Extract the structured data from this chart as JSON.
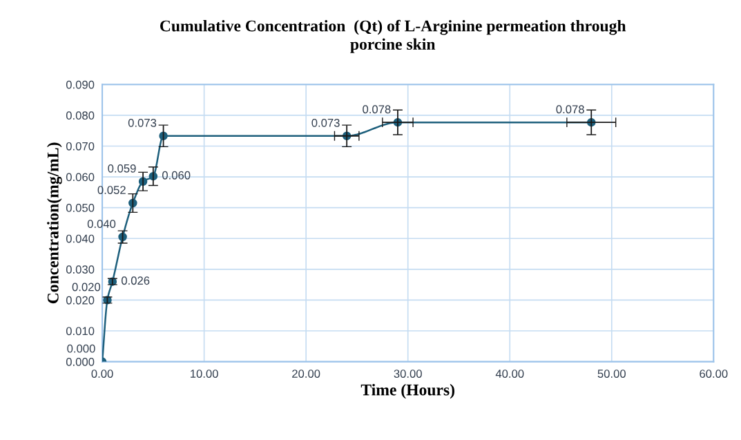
{
  "chart_data": {
    "type": "line",
    "title": "Cumulative Concentration  (Qt) of L-Arginine permeation through porcine skin",
    "xlabel": "Time (Hours)",
    "ylabel": "Concentration(mg/mL)",
    "x": [
      0,
      0.5,
      1,
      2,
      3,
      4,
      5,
      6,
      24,
      29,
      48
    ],
    "series": [
      {
        "color": "#1d5f7c",
        "values": [
          0.0,
          0.02,
          0.026,
          0.0405,
          0.0515,
          0.0585,
          0.0602,
          0.0733,
          0.0733,
          0.0777,
          0.0777
        ],
        "value_labels": [
          "0.000",
          "0.020",
          "0.026",
          "0.040",
          "0.052",
          "0.059",
          "0.060",
          "0.073",
          "0.073",
          "0.078",
          "0.078"
        ],
        "errors": [
          null,
          0.001,
          0.001,
          0.002,
          0.003,
          0.003,
          0.003,
          0.0035,
          0.0035,
          0.004,
          0.004
        ],
        "xerrors": [
          null,
          null,
          null,
          null,
          null,
          null,
          null,
          null,
          1.2,
          1.5,
          2.4
        ]
      }
    ],
    "xlim": [
      0,
      60
    ],
    "xticks": [
      {
        "value": 0,
        "label": "0.00"
      },
      {
        "value": 10,
        "label": "10.00"
      },
      {
        "value": 20,
        "label": "20.00"
      },
      {
        "value": 30,
        "label": "30.00"
      },
      {
        "value": 40,
        "label": "40.00"
      },
      {
        "value": 50,
        "label": "50.00"
      },
      {
        "value": 60,
        "label": "60.00"
      }
    ],
    "ylim": [
      0,
      0.09
    ],
    "yticks": [
      {
        "value": 0,
        "label": "0.000"
      },
      {
        "value": 0.01,
        "label": "0.010"
      },
      {
        "value": 0.02,
        "label": "0.020"
      },
      {
        "value": 0.03,
        "label": "0.030"
      },
      {
        "value": 0.04,
        "label": "0.040"
      },
      {
        "value": 0.05,
        "label": "0.050"
      },
      {
        "value": 0.06,
        "label": "0.060"
      },
      {
        "value": 0.07,
        "label": "0.070"
      },
      {
        "value": 0.08,
        "label": "0.080"
      },
      {
        "value": 0.09,
        "label": "0.090"
      }
    ],
    "grid": true,
    "marker": "circle",
    "line_style": "solid"
  }
}
